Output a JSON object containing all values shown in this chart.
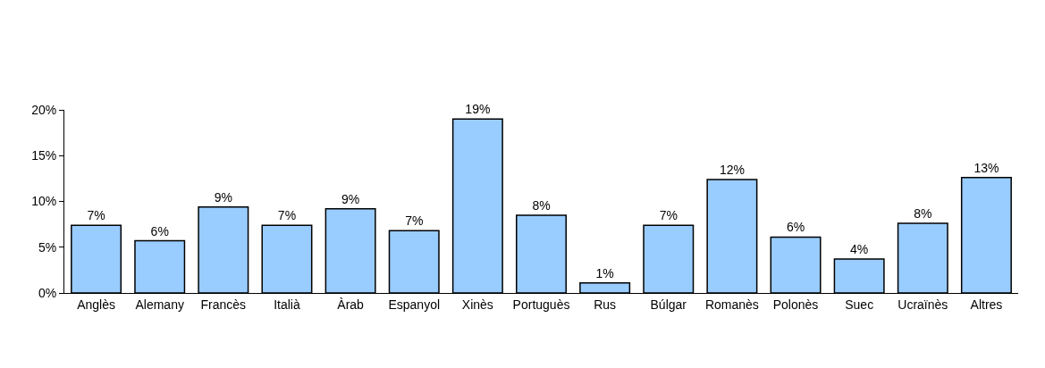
{
  "chart_data": {
    "type": "bar",
    "categories": [
      "Anglès",
      "Alemany",
      "Francès",
      "Italià",
      "Àrab",
      "Espanyol",
      "Xinès",
      "Portuguès",
      "Rus",
      "Búlgar",
      "Romanès",
      "Polonès",
      "Suec",
      "Ucraïnès",
      "Altres"
    ],
    "values": [
      7.4,
      5.7,
      9.4,
      7.4,
      9.2,
      6.8,
      19.0,
      8.5,
      1.1,
      7.4,
      12.4,
      6.1,
      3.7,
      7.6,
      12.6
    ],
    "value_labels": [
      "7%",
      "6%",
      "9%",
      "7%",
      "9%",
      "7%",
      "19%",
      "8%",
      "1%",
      "7%",
      "12%",
      "6%",
      "4%",
      "8%",
      "13%"
    ],
    "color": "#99ccff",
    "ylim": [
      0,
      20
    ],
    "yticks": [
      {
        "value": 0,
        "label": "0%"
      },
      {
        "value": 5,
        "label": "5%"
      },
      {
        "value": 10,
        "label": "10%"
      },
      {
        "value": 15,
        "label": "15%"
      },
      {
        "value": 20,
        "label": "20%"
      }
    ],
    "grid": false,
    "legend": false
  }
}
